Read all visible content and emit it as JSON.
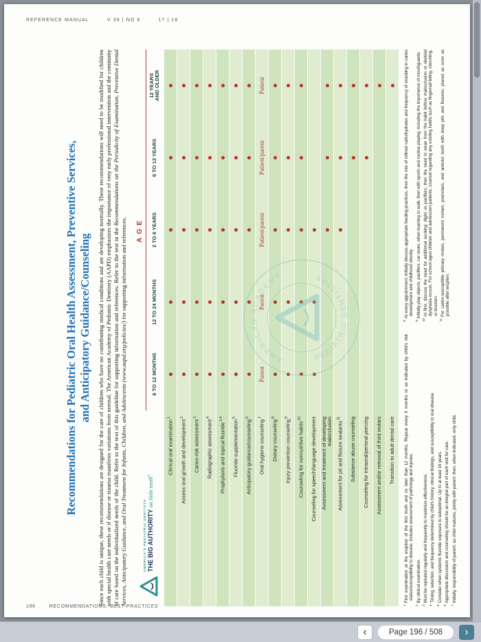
{
  "header": {
    "journal": "REFERENCE MANUAL",
    "volume": "V 39 | NO 6",
    "pages": "17 | 18"
  },
  "footer": {
    "page_number": "196",
    "section_prefix": "RECOMMENDATIONS:",
    "section_name": "BEST PRACTICES"
  },
  "article": {
    "title_line1": "Recommendations for Pediatric Oral Health Assessment, Preventive Services,",
    "title_line2": "and Anticipatory Guidance/Counseling",
    "intro_before": "Since each child is unique, these recommendations are designed for the care of children who have no contributing medical conditions and are developing normally. These recommendations will need to be modified for children with special health care needs or if disease or trauma manifests variations from normal. The American Academy of Pediatric Dentistry (AAPD) emphasizes the importance of very early professional intervention and the continuity of care based on the individualized needs of the child. Refer to the text of this guideline for supporting information and references. Refer to the text in the ",
    "intro_italic": "Recommendations on the Periodicity of Examination, Preventive Dental Services, Anticipatory Guidance, and Oral Treatment for Infants, Children, and Adolescents (www.aapd.org/policies/)",
    "intro_after": " for supporting information and references."
  },
  "logo": {
    "line1": "AMERICA'S PEDIATRIC DENTISTS",
    "line2_bold": "THE BIG AUTHORITY",
    "line2_script": "on little teeth",
    "reg": "®"
  },
  "watermark": {
    "arc_top": "AMERICAN ACADEMY",
    "arc_bottom": "PEDIATRIC DENTISTRY"
  },
  "table": {
    "age_header": "AGE",
    "columns": [
      "6 TO 12 MONTHS",
      "12 TO 24 MONTHS",
      "2 TO 6 YEARS",
      "6 TO 12 YEARS",
      "12 YEARS\nAND OLDER"
    ],
    "rows": [
      {
        "label": "Clinical oral examination",
        "sup": "1",
        "cells": [
          "dot",
          "dot",
          "dot",
          "dot",
          "dot"
        ]
      },
      {
        "label": "Assess oral growth and development",
        "sup": "2",
        "cells": [
          "dot",
          "dot",
          "dot",
          "dot",
          "dot"
        ]
      },
      {
        "label": "Caries-risk assessment",
        "sup": "3",
        "cells": [
          "dot",
          "dot",
          "dot",
          "dot",
          "dot"
        ]
      },
      {
        "label": "Radiographic assessment",
        "sup": "4",
        "cells": [
          "dot",
          "dot",
          "dot",
          "dot",
          "dot"
        ]
      },
      {
        "label": "Prophylaxis and topical fluoride",
        "sup": "3,4",
        "cells": [
          "dot",
          "dot",
          "dot",
          "dot",
          "dot"
        ]
      },
      {
        "label": "Fluoride supplementation",
        "sup": "5",
        "cells": [
          "dot",
          "dot",
          "dot",
          "dot",
          "dot"
        ]
      },
      {
        "label": "Anticipatory guidance/counseling",
        "sup": "6",
        "cells": [
          "dot",
          "dot",
          "dot",
          "dot",
          "dot"
        ]
      },
      {
        "label": "Oral hygiene counseling",
        "sup": "7",
        "cells": [
          "Parent",
          "Parent",
          "Patient/parent",
          "Patient/parent",
          "Patient"
        ]
      },
      {
        "label": "Dietary counseling",
        "sup": "8",
        "cells": [
          "dot",
          "dot",
          "dot",
          "dot",
          "dot"
        ]
      },
      {
        "label": "Injury prevention counseling",
        "sup": "9",
        "cells": [
          "dot",
          "dot",
          "dot",
          "dot",
          "dot"
        ]
      },
      {
        "label": "Counseling for nonnutritive habits",
        "sup": "10",
        "cells": [
          "dot",
          "dot",
          "dot",
          "dot",
          "dot"
        ]
      },
      {
        "label": "Counseling for speech/language development",
        "sup": "",
        "cells": [
          "dot",
          "dot",
          "dot",
          "",
          ""
        ]
      },
      {
        "label": "Assessment and treatment of developing malocclusion",
        "sup": "",
        "cells": [
          "",
          "",
          "dot",
          "dot",
          "dot"
        ]
      },
      {
        "label": "Assessment for pit and fissure sealants",
        "sup": "11",
        "cells": [
          "",
          "",
          "dot",
          "dot",
          "dot"
        ]
      },
      {
        "label": "Substance abuse counseling",
        "sup": "",
        "cells": [
          "",
          "",
          "",
          "dot",
          "dot"
        ]
      },
      {
        "label": "Counseling for intraoral/perioral piercing",
        "sup": "",
        "cells": [
          "",
          "",
          "",
          "dot",
          "dot"
        ]
      },
      {
        "label": "Assessment and/or removal of third molars",
        "sup": "",
        "cells": [
          "",
          "",
          "",
          "",
          "dot"
        ]
      },
      {
        "label": "Transition to adult dental care",
        "sup": "",
        "cells": [
          "",
          "",
          "",
          "",
          "dot"
        ]
      }
    ]
  },
  "footnotes": {
    "col1": [
      {
        "num": "1",
        "text": "First examination at the eruption of the first tooth and no later than 12 months. Repeat every 6 months or as indicated by child's risk status/susceptibility to disease. Includes assessment of pathology and injuries."
      },
      {
        "num": "2",
        "text": "By clinical examination."
      },
      {
        "num": "3",
        "text": "Must be repeated regularly and frequently to maximize effectiveness."
      },
      {
        "num": "4",
        "text": "Timing, selection, and frequency determined by child's history, clinical findings, and susceptibility to oral disease."
      },
      {
        "num": "5",
        "text": "Consider when systemic fluoride exposure is suboptimal. Up to at least 16 years."
      },
      {
        "num": "6",
        "text": "Appropriate discussion and counseling should be an integral part of each visit for care."
      },
      {
        "num": "7",
        "text": "Initially, responsibility of parent; as child matures, jointly with parent; then, when indicated, only child."
      }
    ],
    "col2": [
      {
        "num": "8",
        "text": "At every appointment; initially discuss appropriate feeding practices, then the role of refined carbohydrates and frequency of snacking in caries development and childhood obesity."
      },
      {
        "num": "9",
        "text": "Initially play objects, pacifiers, car seats; when learning to walk; then with sports and routine playing, including the importance of mouthguards."
      },
      {
        "num": "10",
        "text": "At first, discuss the need for additional sucking: digits vs pacifiers; then the need to wean from the habit before malocclusion or skeletal dysplasia occurs. For school-aged children and adolescent patients, counsel regarding any existing habits such as fingernail biting, clenching, or bruxism."
      },
      {
        "num": "11",
        "text": "For caries-susceptible primary molars, permanent molars, premolars, and anterior teeth with deep pits and fissures; placed as soon as possible after eruption."
      }
    ]
  },
  "toolbar": {
    "page_label": "Page 196 / 508",
    "prev_icon": "‹",
    "next_icon": "›"
  }
}
